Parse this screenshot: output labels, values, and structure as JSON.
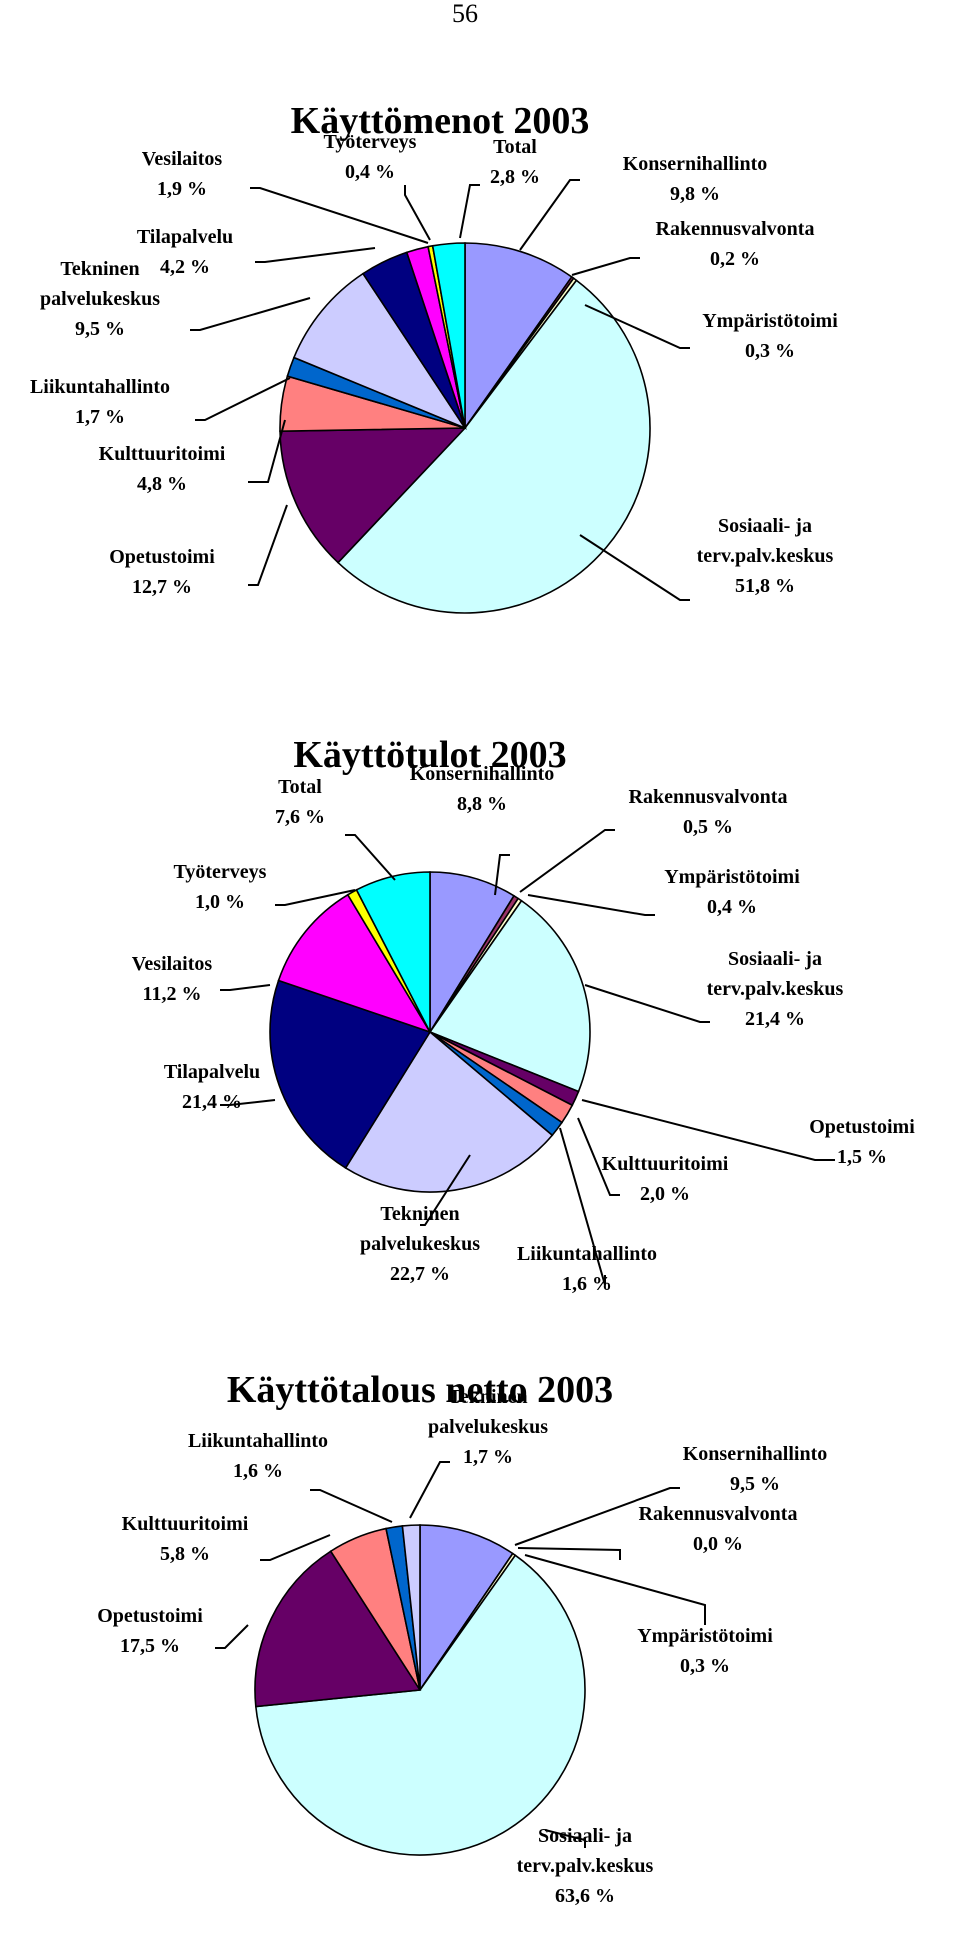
{
  "page_number": "56",
  "chart_data": [
    {
      "type": "pie",
      "title": "Käyttömenot 2003",
      "slices": [
        {
          "name": "Konsernihallinto",
          "value_label": "9,8 %",
          "value": 9.8,
          "color": "#9999ff"
        },
        {
          "name": "Rakennusvalvonta",
          "value_label": "0,2 %",
          "value": 0.2,
          "color": "#993366"
        },
        {
          "name": "Ympäristötoimi",
          "value_label": "0,3 %",
          "value": 0.3,
          "color": "#ffffcc"
        },
        {
          "name": "Sosiaali- ja terv.palv.keskus",
          "value_label": "51,8 %",
          "value": 51.8,
          "color": "#ccffff"
        },
        {
          "name": "Opetustoimi",
          "value_label": "12,7 %",
          "value": 12.7,
          "color": "#660066"
        },
        {
          "name": "Kulttuuritoimi",
          "value_label": "4,8 %",
          "value": 4.8,
          "color": "#ff8080"
        },
        {
          "name": "Liikuntahallinto",
          "value_label": "1,7 %",
          "value": 1.7,
          "color": "#0066cc"
        },
        {
          "name": "Tekninen palvelukeskus",
          "value_label": "9,5 %",
          "value": 9.5,
          "color": "#ccccff"
        },
        {
          "name": "Tilapalvelu",
          "value_label": "4,2 %",
          "value": 4.2,
          "color": "#000080"
        },
        {
          "name": "Vesilaitos",
          "value_label": "1,9 %",
          "value": 1.9,
          "color": "#ff00ff"
        },
        {
          "name": "Työterveys",
          "value_label": "0,4 %",
          "value": 0.4,
          "color": "#ffff00"
        },
        {
          "name": "Total",
          "value_label": "2,8 %",
          "value": 2.8,
          "color": "#00ffff"
        }
      ],
      "labels": [
        {
          "lines": [
            "Konsernihallinto",
            "9,8 %"
          ]
        },
        {
          "lines": [
            "Rakennusvalvonta",
            "0,2 %"
          ]
        },
        {
          "lines": [
            "Ympäristötoimi",
            "0,3 %"
          ]
        },
        {
          "lines": [
            "Sosiaali- ja",
            "terv.palv.keskus",
            "51,8 %"
          ]
        },
        {
          "lines": [
            "Opetustoimi",
            "12,7 %"
          ]
        },
        {
          "lines": [
            "Kulttuuritoimi",
            "4,8 %"
          ]
        },
        {
          "lines": [
            "Liikuntahallinto",
            "1,7 %"
          ]
        },
        {
          "lines": [
            "Tekninen",
            "palvelukeskus",
            "9,5 %"
          ]
        },
        {
          "lines": [
            "Tilapalvelu",
            "4,2 %"
          ]
        },
        {
          "lines": [
            "Vesilaitos",
            "1,9 %"
          ]
        },
        {
          "lines": [
            "Työterveys",
            "0,4 %"
          ]
        },
        {
          "lines": [
            "Total",
            "2,8 %"
          ]
        }
      ]
    },
    {
      "type": "pie",
      "title": "Käyttötulot 2003",
      "slices": [
        {
          "name": "Konsernihallinto",
          "value_label": "8,8 %",
          "value": 8.8,
          "color": "#9999ff"
        },
        {
          "name": "Rakennusvalvonta",
          "value_label": "0,5 %",
          "value": 0.5,
          "color": "#993366"
        },
        {
          "name": "Ympäristötoimi",
          "value_label": "0,4 %",
          "value": 0.4,
          "color": "#ffffcc"
        },
        {
          "name": "Sosiaali- ja terv.palv.keskus",
          "value_label": "21,4 %",
          "value": 21.4,
          "color": "#ccffff"
        },
        {
          "name": "Opetustoimi",
          "value_label": "1,5 %",
          "value": 1.5,
          "color": "#660066"
        },
        {
          "name": "Kulttuuritoimi",
          "value_label": "2,0 %",
          "value": 2.0,
          "color": "#ff8080"
        },
        {
          "name": "Liikuntahallinto",
          "value_label": "1,6 %",
          "value": 1.6,
          "color": "#0066cc"
        },
        {
          "name": "Tekninen palvelukeskus",
          "value_label": "22,7 %",
          "value": 22.7,
          "color": "#ccccff"
        },
        {
          "name": "Tilapalvelu",
          "value_label": "21,4 %",
          "value": 21.4,
          "color": "#000080"
        },
        {
          "name": "Vesilaitos",
          "value_label": "11,2 %",
          "value": 11.2,
          "color": "#ff00ff"
        },
        {
          "name": "Työterveys",
          "value_label": "1,0 %",
          "value": 1.0,
          "color": "#ffff00"
        },
        {
          "name": "Total",
          "value_label": "7,6 %",
          "value": 7.6,
          "color": "#00ffff"
        }
      ],
      "labels": [
        {
          "lines": [
            "Konsernihallinto",
            "8,8 %"
          ]
        },
        {
          "lines": [
            "Rakennusvalvonta",
            "0,5 %"
          ]
        },
        {
          "lines": [
            "Ympäristötoimi",
            "0,4 %"
          ]
        },
        {
          "lines": [
            "Sosiaali- ja",
            "terv.palv.keskus",
            "21,4 %"
          ]
        },
        {
          "lines": [
            "Opetustoimi",
            "1,5 %"
          ]
        },
        {
          "lines": [
            "Kulttuuritoimi",
            "2,0 %"
          ]
        },
        {
          "lines": [
            "Liikuntahallinto",
            "1,6 %"
          ]
        },
        {
          "lines": [
            "Tekninen",
            "palvelukeskus",
            "22,7 %"
          ]
        },
        {
          "lines": [
            "Tilapalvelu",
            "21,4 %"
          ]
        },
        {
          "lines": [
            "Vesilaitos",
            "11,2 %"
          ]
        },
        {
          "lines": [
            "Työterveys",
            "1,0 %"
          ]
        },
        {
          "lines": [
            "Total",
            "7,6 %"
          ]
        }
      ]
    },
    {
      "type": "pie",
      "title": "Käyttötalous netto 2003",
      "slices": [
        {
          "name": "Konsernihallinto",
          "value_label": "9,5 %",
          "value": 9.5,
          "color": "#9999ff"
        },
        {
          "name": "Rakennusvalvonta",
          "value_label": "0,0 %",
          "value": 0.0,
          "color": "#993366"
        },
        {
          "name": "Ympäristötoimi",
          "value_label": "0,3 %",
          "value": 0.3,
          "color": "#ffffcc"
        },
        {
          "name": "Sosiaali- ja terv.palv.keskus",
          "value_label": "63,6 %",
          "value": 63.6,
          "color": "#ccffff"
        },
        {
          "name": "Opetustoimi",
          "value_label": "17,5 %",
          "value": 17.5,
          "color": "#660066"
        },
        {
          "name": "Kulttuuritoimi",
          "value_label": "5,8 %",
          "value": 5.8,
          "color": "#ff8080"
        },
        {
          "name": "Liikuntahallinto",
          "value_label": "1,6 %",
          "value": 1.6,
          "color": "#0066cc"
        },
        {
          "name": "Tekninen palvelukeskus",
          "value_label": "1,7 %",
          "value": 1.7,
          "color": "#ccccff"
        }
      ],
      "labels": [
        {
          "lines": [
            "Konsernihallinto",
            "9,5 %"
          ]
        },
        {
          "lines": [
            "Rakennusvalvonta",
            "0,0 %"
          ]
        },
        {
          "lines": [
            "Ympäristötoimi",
            "0,3 %"
          ]
        },
        {
          "lines": [
            "Sosiaali- ja",
            "terv.palv.keskus",
            "63,6 %"
          ]
        },
        {
          "lines": [
            "Opetustoimi",
            "17,5 %"
          ]
        },
        {
          "lines": [
            "Kulttuuritoimi",
            "5,8 %"
          ]
        },
        {
          "lines": [
            "Liikuntahallinto",
            "1,6 %"
          ]
        },
        {
          "lines": [
            "Tekninen",
            "palvelukeskus",
            "1,7 %"
          ]
        }
      ]
    }
  ]
}
